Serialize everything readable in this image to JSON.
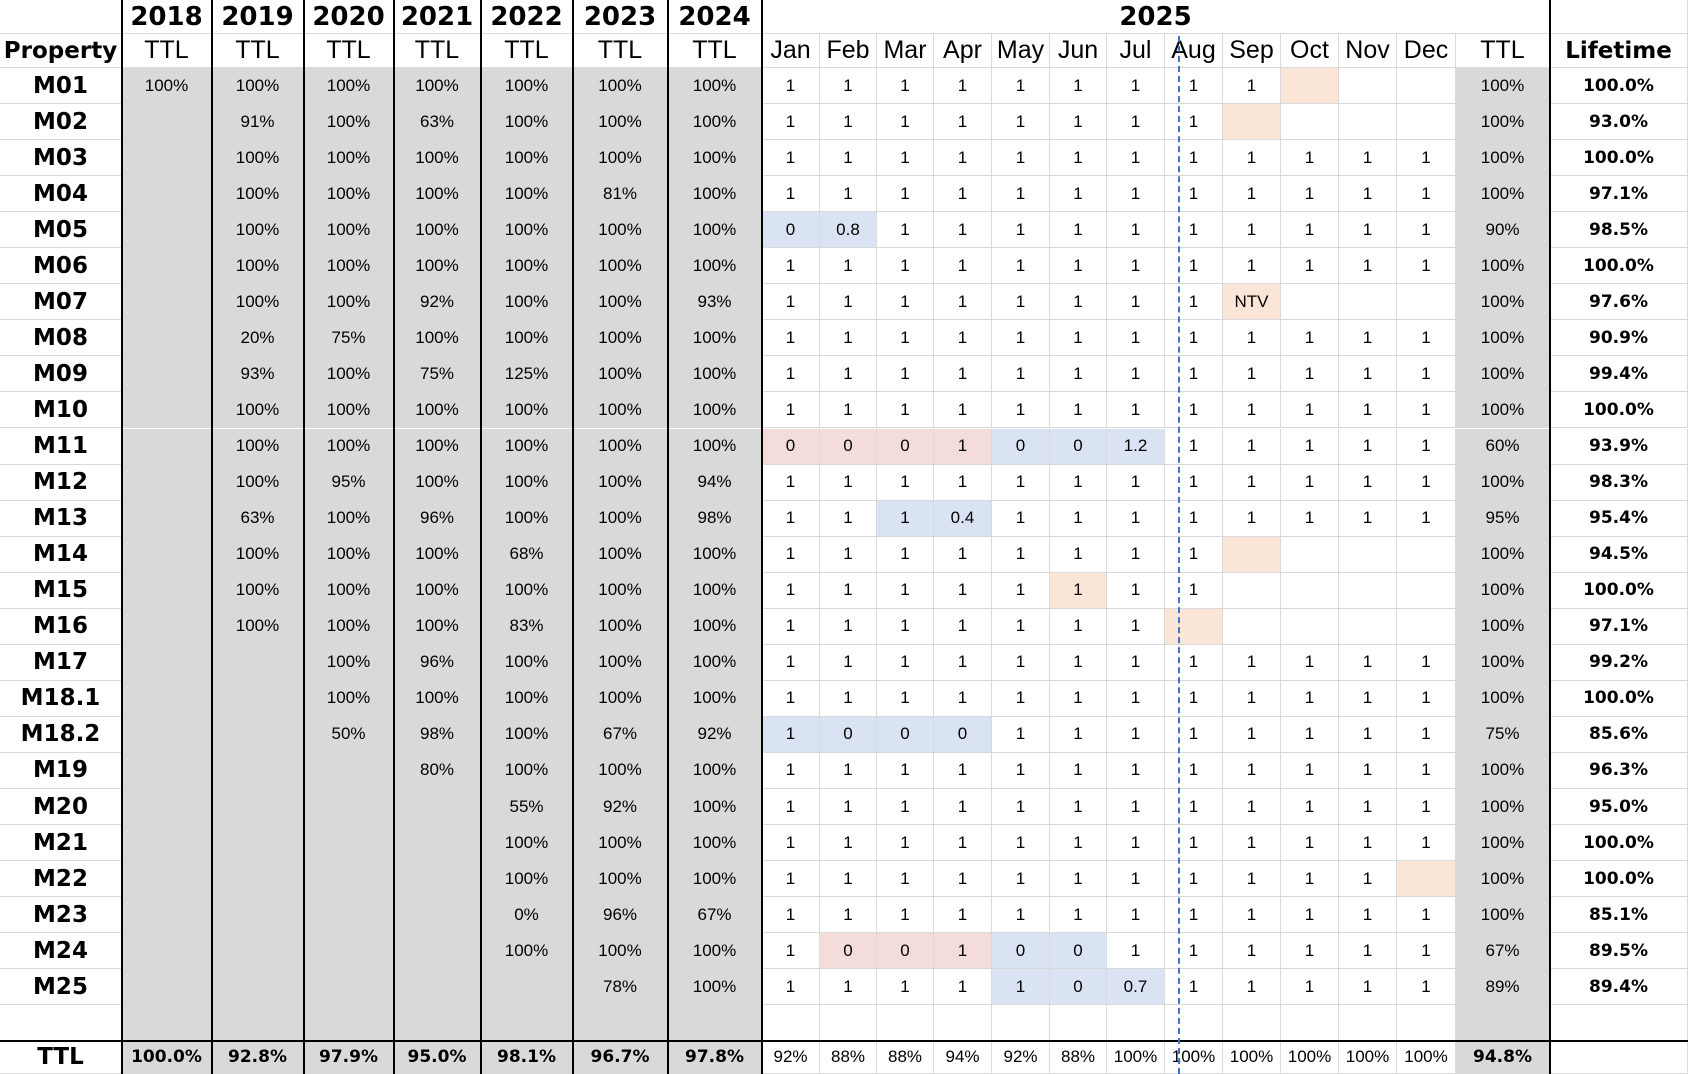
{
  "sheet": {
    "columns": [
      "Property",
      "2018",
      "2019",
      "2020",
      "2021",
      "2022",
      "2023",
      "2024",
      "Jan",
      "Feb",
      "Mar",
      "Apr",
      "May",
      "Jun",
      "Jul",
      "Aug",
      "Sep",
      "Oct",
      "Nov",
      "Dec",
      "TTL",
      "Lifetime"
    ],
    "header_years": [
      "2018",
      "2019",
      "2020",
      "2021",
      "2022",
      "2023",
      "2024"
    ],
    "header_2025": "2025",
    "header_sub": {
      "property": "Property",
      "ttl": "TTL",
      "months": [
        "Jan",
        "Feb",
        "Mar",
        "Apr",
        "May",
        "Jun",
        "Jul",
        "Aug",
        "Sep",
        "Oct",
        "Nov",
        "Dec"
      ],
      "lifetime": "Lifetime"
    },
    "rows": [
      {
        "name": "M01",
        "years": [
          "100%",
          "100%",
          "100%",
          "100%",
          "100%",
          "100%",
          "100%"
        ],
        "months": [
          "1",
          "1",
          "1",
          "1",
          "1",
          "1",
          "1",
          "1",
          "1",
          "",
          "",
          ""
        ],
        "ttl": "100%",
        "lifetime": "100.0%",
        "hl": {
          "9": "o"
        }
      },
      {
        "name": "M02",
        "years": [
          "",
          "91%",
          "100%",
          "63%",
          "100%",
          "100%",
          "100%"
        ],
        "months": [
          "1",
          "1",
          "1",
          "1",
          "1",
          "1",
          "1",
          "1",
          "",
          "",
          "",
          ""
        ],
        "ttl": "100%",
        "lifetime": "93.0%",
        "hl": {
          "8": "o"
        }
      },
      {
        "name": "M03",
        "years": [
          "",
          "100%",
          "100%",
          "100%",
          "100%",
          "100%",
          "100%"
        ],
        "months": [
          "1",
          "1",
          "1",
          "1",
          "1",
          "1",
          "1",
          "1",
          "1",
          "1",
          "1",
          "1"
        ],
        "ttl": "100%",
        "lifetime": "100.0%",
        "hl": {}
      },
      {
        "name": "M04",
        "years": [
          "",
          "100%",
          "100%",
          "100%",
          "100%",
          "81%",
          "100%"
        ],
        "months": [
          "1",
          "1",
          "1",
          "1",
          "1",
          "1",
          "1",
          "1",
          "1",
          "1",
          "1",
          "1"
        ],
        "ttl": "100%",
        "lifetime": "97.1%",
        "hl": {}
      },
      {
        "name": "M05",
        "years": [
          "",
          "100%",
          "100%",
          "100%",
          "100%",
          "100%",
          "100%"
        ],
        "months": [
          "0",
          "0.8",
          "1",
          "1",
          "1",
          "1",
          "1",
          "1",
          "1",
          "1",
          "1",
          "1"
        ],
        "ttl": "90%",
        "lifetime": "98.5%",
        "hl": {
          "0": "b",
          "1": "b"
        }
      },
      {
        "name": "M06",
        "years": [
          "",
          "100%",
          "100%",
          "100%",
          "100%",
          "100%",
          "100%"
        ],
        "months": [
          "1",
          "1",
          "1",
          "1",
          "1",
          "1",
          "1",
          "1",
          "1",
          "1",
          "1",
          "1"
        ],
        "ttl": "100%",
        "lifetime": "100.0%",
        "hl": {}
      },
      {
        "name": "M07",
        "years": [
          "",
          "100%",
          "100%",
          "92%",
          "100%",
          "100%",
          "93%"
        ],
        "months": [
          "1",
          "1",
          "1",
          "1",
          "1",
          "1",
          "1",
          "1",
          "NTV",
          "",
          "",
          ""
        ],
        "ttl": "100%",
        "lifetime": "97.6%",
        "hl": {
          "8": "o"
        }
      },
      {
        "name": "M08",
        "years": [
          "",
          "20%",
          "75%",
          "100%",
          "100%",
          "100%",
          "100%"
        ],
        "months": [
          "1",
          "1",
          "1",
          "1",
          "1",
          "1",
          "1",
          "1",
          "1",
          "1",
          "1",
          "1"
        ],
        "ttl": "100%",
        "lifetime": "90.9%",
        "hl": {}
      },
      {
        "name": "M09",
        "years": [
          "",
          "93%",
          "100%",
          "75%",
          "125%",
          "100%",
          "100%"
        ],
        "months": [
          "1",
          "1",
          "1",
          "1",
          "1",
          "1",
          "1",
          "1",
          "1",
          "1",
          "1",
          "1"
        ],
        "ttl": "100%",
        "lifetime": "99.4%",
        "hl": {}
      },
      {
        "name": "M10",
        "years": [
          "",
          "100%",
          "100%",
          "100%",
          "100%",
          "100%",
          "100%"
        ],
        "months": [
          "1",
          "1",
          "1",
          "1",
          "1",
          "1",
          "1",
          "1",
          "1",
          "1",
          "1",
          "1"
        ],
        "ttl": "100%",
        "lifetime": "100.0%",
        "hl": {}
      },
      {
        "name": "M11",
        "years": [
          "",
          "100%",
          "100%",
          "100%",
          "100%",
          "100%",
          "100%"
        ],
        "months": [
          "0",
          "0",
          "0",
          "1",
          "0",
          "0",
          "1.2",
          "1",
          "1",
          "1",
          "1",
          "1"
        ],
        "ttl": "60%",
        "lifetime": "93.9%",
        "hl": {
          "0": "r",
          "1": "r",
          "2": "r",
          "3": "r",
          "4": "b",
          "5": "b",
          "6": "b"
        }
      },
      {
        "name": "M12",
        "years": [
          "",
          "100%",
          "95%",
          "100%",
          "100%",
          "100%",
          "94%"
        ],
        "months": [
          "1",
          "1",
          "1",
          "1",
          "1",
          "1",
          "1",
          "1",
          "1",
          "1",
          "1",
          "1"
        ],
        "ttl": "100%",
        "lifetime": "98.3%",
        "hl": {}
      },
      {
        "name": "M13",
        "years": [
          "",
          "63%",
          "100%",
          "96%",
          "100%",
          "100%",
          "98%"
        ],
        "months": [
          "1",
          "1",
          "1",
          "0.4",
          "1",
          "1",
          "1",
          "1",
          "1",
          "1",
          "1",
          "1"
        ],
        "ttl": "95%",
        "lifetime": "95.4%",
        "hl": {
          "2": "b",
          "3": "b"
        }
      },
      {
        "name": "M14",
        "years": [
          "",
          "100%",
          "100%",
          "100%",
          "68%",
          "100%",
          "100%"
        ],
        "months": [
          "1",
          "1",
          "1",
          "1",
          "1",
          "1",
          "1",
          "1",
          "",
          "",
          "",
          ""
        ],
        "ttl": "100%",
        "lifetime": "94.5%",
        "hl": {
          "8": "o"
        }
      },
      {
        "name": "M15",
        "years": [
          "",
          "100%",
          "100%",
          "100%",
          "100%",
          "100%",
          "100%"
        ],
        "months": [
          "1",
          "1",
          "1",
          "1",
          "1",
          "1",
          "1",
          "1",
          "",
          "",
          "",
          ""
        ],
        "ttl": "100%",
        "lifetime": "100.0%",
        "hl": {
          "5": "o"
        }
      },
      {
        "name": "M16",
        "years": [
          "",
          "100%",
          "100%",
          "100%",
          "83%",
          "100%",
          "100%"
        ],
        "months": [
          "1",
          "1",
          "1",
          "1",
          "1",
          "1",
          "1",
          "",
          "",
          "",
          "",
          ""
        ],
        "ttl": "100%",
        "lifetime": "97.1%",
        "hl": {
          "7": "o"
        }
      },
      {
        "name": "M17",
        "years": [
          "",
          "",
          "100%",
          "96%",
          "100%",
          "100%",
          "100%"
        ],
        "months": [
          "1",
          "1",
          "1",
          "1",
          "1",
          "1",
          "1",
          "1",
          "1",
          "1",
          "1",
          "1"
        ],
        "ttl": "100%",
        "lifetime": "99.2%",
        "hl": {}
      },
      {
        "name": "M18.1",
        "years": [
          "",
          "",
          "100%",
          "100%",
          "100%",
          "100%",
          "100%"
        ],
        "months": [
          "1",
          "1",
          "1",
          "1",
          "1",
          "1",
          "1",
          "1",
          "1",
          "1",
          "1",
          "1"
        ],
        "ttl": "100%",
        "lifetime": "100.0%",
        "hl": {}
      },
      {
        "name": "M18.2",
        "years": [
          "",
          "",
          "50%",
          "98%",
          "100%",
          "67%",
          "92%"
        ],
        "months": [
          "1",
          "0",
          "0",
          "0",
          "1",
          "1",
          "1",
          "1",
          "1",
          "1",
          "1",
          "1"
        ],
        "ttl": "75%",
        "lifetime": "85.6%",
        "hl": {
          "0": "b",
          "1": "b",
          "2": "b",
          "3": "b"
        }
      },
      {
        "name": "M19",
        "years": [
          "",
          "",
          "",
          "80%",
          "100%",
          "100%",
          "100%"
        ],
        "months": [
          "1",
          "1",
          "1",
          "1",
          "1",
          "1",
          "1",
          "1",
          "1",
          "1",
          "1",
          "1"
        ],
        "ttl": "100%",
        "lifetime": "96.3%",
        "hl": {}
      },
      {
        "name": "M20",
        "years": [
          "",
          "",
          "",
          "",
          "55%",
          "92%",
          "100%"
        ],
        "months": [
          "1",
          "1",
          "1",
          "1",
          "1",
          "1",
          "1",
          "1",
          "1",
          "1",
          "1",
          "1"
        ],
        "ttl": "100%",
        "lifetime": "95.0%",
        "hl": {}
      },
      {
        "name": "M21",
        "years": [
          "",
          "",
          "",
          "",
          "100%",
          "100%",
          "100%"
        ],
        "months": [
          "1",
          "1",
          "1",
          "1",
          "1",
          "1",
          "1",
          "1",
          "1",
          "1",
          "1",
          "1"
        ],
        "ttl": "100%",
        "lifetime": "100.0%",
        "hl": {}
      },
      {
        "name": "M22",
        "years": [
          "",
          "",
          "",
          "",
          "100%",
          "100%",
          "100%"
        ],
        "months": [
          "1",
          "1",
          "1",
          "1",
          "1",
          "1",
          "1",
          "1",
          "1",
          "1",
          "1",
          ""
        ],
        "ttl": "100%",
        "lifetime": "100.0%",
        "hl": {
          "11": "o"
        }
      },
      {
        "name": "M23",
        "years": [
          "",
          "",
          "",
          "",
          "0%",
          "96%",
          "67%"
        ],
        "months": [
          "1",
          "1",
          "1",
          "1",
          "1",
          "1",
          "1",
          "1",
          "1",
          "1",
          "1",
          "1"
        ],
        "ttl": "100%",
        "lifetime": "85.1%",
        "hl": {}
      },
      {
        "name": "M24",
        "years": [
          "",
          "",
          "",
          "",
          "100%",
          "100%",
          "100%"
        ],
        "months": [
          "1",
          "0",
          "0",
          "1",
          "0",
          "0",
          "1",
          "1",
          "1",
          "1",
          "1",
          "1"
        ],
        "ttl": "67%",
        "lifetime": "89.5%",
        "hl": {
          "1": "r",
          "2": "r",
          "3": "r",
          "4": "b",
          "5": "b"
        }
      },
      {
        "name": "M25",
        "years": [
          "",
          "",
          "",
          "",
          "",
          "78%",
          "100%"
        ],
        "months": [
          "1",
          "1",
          "1",
          "1",
          "1",
          "0",
          "0.7",
          "1",
          "1",
          "1",
          "1",
          "1"
        ],
        "ttl": "89%",
        "lifetime": "89.4%",
        "hl": {
          "4": "b",
          "5": "b",
          "6": "b"
        }
      }
    ],
    "total": {
      "label": "TTL",
      "years": [
        "100.0%",
        "92.8%",
        "97.9%",
        "95.0%",
        "98.1%",
        "96.7%",
        "97.8%"
      ],
      "months": [
        "92%",
        "88%",
        "88%",
        "94%",
        "92%",
        "88%",
        "100%",
        "100%",
        "100%",
        "100%",
        "100%",
        "100%"
      ],
      "ttl": "94.8%",
      "lifetime": ""
    },
    "colors": {
      "gray": "#d9d9d9",
      "orange": "#fbe5d6",
      "blue": "#dae3f3",
      "red": "#f4dcdb",
      "dash": "#4472c4"
    }
  }
}
